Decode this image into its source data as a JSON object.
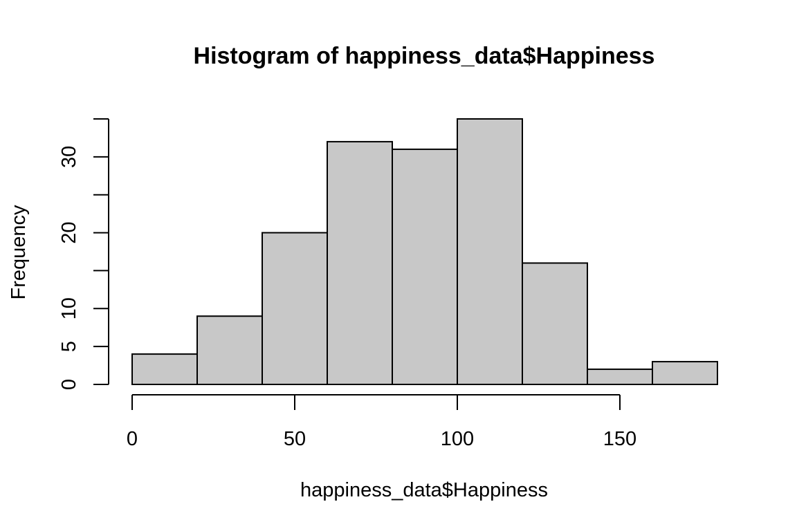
{
  "chart_data": {
    "type": "bar",
    "title": "Histogram of happiness_data$Happiness",
    "xlabel": "happiness_data$Happiness",
    "ylabel": "Frequency",
    "bins": [
      [
        0,
        20
      ],
      [
        20,
        40
      ],
      [
        40,
        60
      ],
      [
        60,
        80
      ],
      [
        80,
        100
      ],
      [
        100,
        120
      ],
      [
        120,
        140
      ],
      [
        140,
        160
      ],
      [
        160,
        180
      ]
    ],
    "values": [
      4,
      9,
      20,
      32,
      31,
      35,
      16,
      2,
      3
    ],
    "xlim": [
      0,
      180
    ],
    "ylim": [
      0,
      35
    ],
    "x_ticks": [
      0,
      50,
      100,
      150
    ],
    "x_tick_labels": [
      "0",
      "50",
      "100",
      "150"
    ],
    "y_ticks": [
      0,
      5,
      10,
      15,
      20,
      25,
      30,
      35
    ],
    "y_tick_labels": [
      "0",
      "5",
      "10",
      "",
      "20",
      "",
      "30",
      ""
    ],
    "bar_fill": "#c8c8c8",
    "bar_stroke": "#000000",
    "grid": false,
    "legend": "none"
  }
}
